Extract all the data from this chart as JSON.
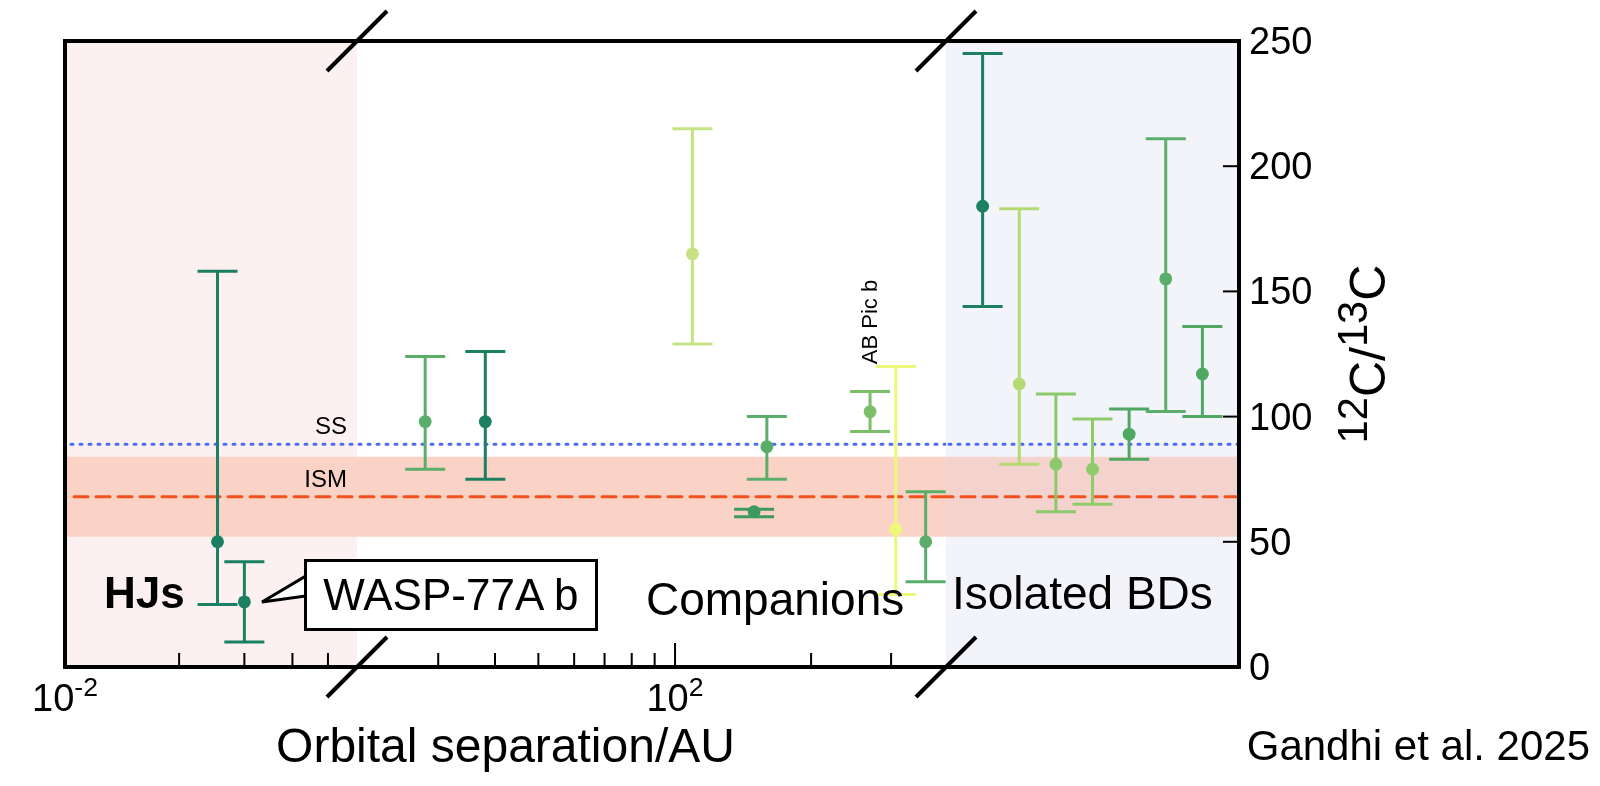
{
  "chart_data": [
    {
      "type": "scatter",
      "log": "x",
      "xlim": [
        0.01,
        5980
      ],
      "xticks": [
        {
          "value": 0.01,
          "label": "10$^{-2}$"
        },
        {
          "value": 0.056,
          "label": null
        },
        {
          "value": 0.15,
          "label": null
        },
        {
          "value": 0.31,
          "label": null
        },
        {
          "value": 0.53,
          "label": null
        },
        {
          "value": 2.8,
          "label": null
        },
        {
          "value": 6.6,
          "label": null
        },
        {
          "value": 12.7,
          "label": null
        },
        {
          "value": 21.8,
          "label": null
        },
        {
          "value": 34.5,
          "label": null
        },
        {
          "value": 52,
          "label": null
        },
        {
          "value": 73.5,
          "label": null
        },
        {
          "value": 100,
          "label": "10$^{2}$"
        },
        {
          "value": 780,
          "label": null
        },
        {
          "value": 2610,
          "label": null
        }
      ],
      "ylim": [
        0,
        250
      ],
      "yticks": [
        0,
        50,
        100,
        150,
        200,
        250
      ],
      "tick_labels": "x",
      "marker": "circle",
      "xlabel": "Orbital separation/AU",
      "series": [
        {
          "x": [
            0.1,
            0.15,
            2.3,
            5.7,
            130,
            400,
            330,
            1900,
            2800,
            4400
          ],
          "values": [
            50,
            26,
            98,
            98,
            165,
            88,
            62,
            102,
            55,
            50
          ],
          "errors": [
            [
              25,
              158
            ],
            [
              10,
              42
            ],
            [
              79,
              124
            ],
            [
              75,
              126
            ],
            [
              129,
              215
            ],
            [
              75,
              100
            ],
            [
              60,
              63
            ],
            [
              94,
              110
            ],
            [
              29,
              120
            ],
            [
              34,
              70
            ]
          ],
          "colors": [
            "#1b7f62",
            "#1b7f62",
            "#5aae6a",
            "#1b7f62",
            "#c5e384",
            "#5aae6a",
            "#3d9a5e",
            "#7dbf68",
            "#eef77a",
            "#5aae6a"
          ]
        }
      ],
      "ref_lines": [
        {
          "axis": "y",
          "value": 89,
          "label": "SS",
          "color": "#4a6cf0",
          "line_style": "dotted"
        },
        {
          "axis": "y",
          "value": 68,
          "label": "ISM",
          "color": "#f4511e",
          "line_style": "dashed"
        }
      ],
      "bands": [
        {
          "axis": "x",
          "from": 0.01,
          "to": 0.82,
          "color": "#fdf0f0"
        },
        {
          "axis": "y",
          "from": 52,
          "to": 84,
          "color": "#fbd3c6"
        }
      ],
      "annotations": [
        "HJs",
        {
          "text": "WASP-77A b",
          "x": 0.15,
          "y": 26
        },
        "Companions",
        {
          "text": "AB Pic b",
          "x": 1900,
          "y": 102
        }
      ]
    },
    {
      "type": "scatter",
      "categories": [
        null,
        null,
        null,
        null,
        null,
        null,
        null
      ],
      "ylim": [
        0,
        250
      ],
      "yticks": [
        0,
        50,
        100,
        150,
        200,
        250
      ],
      "tick_labels": "y",
      "marker": "circle",
      "ylabel": "$^{12}$C/$^{13}$C",
      "series": [
        {
          "values": [
            184,
            113,
            81,
            79,
            93,
            155,
            117
          ],
          "errors": [
            [
              144,
              245
            ],
            [
              81,
              183
            ],
            [
              62,
              109
            ],
            [
              65,
              99
            ],
            [
              83,
              103
            ],
            [
              102,
              211
            ],
            [
              100,
              136
            ]
          ],
          "colors": [
            "#1b7f62",
            "#b5da73",
            "#8cc96a",
            "#8fcb6a",
            "#4fa862",
            "#5aae6a",
            "#4fa862"
          ]
        }
      ],
      "ref_lines": [
        {
          "axis": "y",
          "value": 89,
          "color": "#4a6cf0",
          "line_style": "dotted"
        },
        {
          "axis": "y",
          "value": 68,
          "color": "#f4511e",
          "line_style": "dashed"
        }
      ],
      "bands": [
        {
          "axis": "y",
          "from": 0,
          "to": 250,
          "color": "#f3f4fa"
        },
        {
          "axis": "y",
          "from": 52,
          "to": 84,
          "color": "#f4d3cf"
        }
      ],
      "annotations": [
        "Isolated BDs",
        "Gandhi et al. 2025"
      ]
    }
  ]
}
